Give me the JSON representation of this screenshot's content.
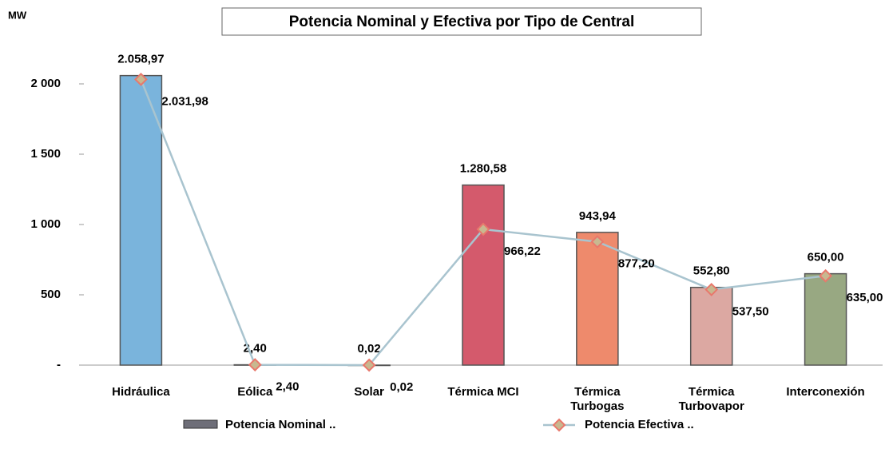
{
  "chart_data": {
    "type": "bar_line",
    "title": "Potencia Nominal y Efectiva por Tipo de Central",
    "y_label": "MW",
    "categories": [
      "Hidráulica",
      "Eólica",
      "Solar",
      "Térmica MCI",
      "Térmica Turbogas",
      "Térmica Turbovapor",
      "Interconexión"
    ],
    "series": [
      {
        "name": "Potencia Nominal ..",
        "type": "bar",
        "colors": [
          "#7ab4dc",
          "#6e6e78",
          "#6e6e78",
          "#d45a6c",
          "#ee8a6c",
          "#dca8a2",
          "#98a882"
        ],
        "values": [
          2058.97,
          2.4,
          0.02,
          1280.58,
          943.94,
          552.8,
          650.0
        ],
        "value_labels": [
          "2.058,97",
          "2,40",
          "0,02",
          "1.280,58",
          "943,94",
          "552,80",
          "650,00"
        ]
      },
      {
        "name": "Potencia Efectiva ..",
        "type": "line",
        "color": "#a9c4cf",
        "marker_color": "#e8786c",
        "values": [
          2031.98,
          2.4,
          0.02,
          966.22,
          877.2,
          537.5,
          635.0
        ],
        "value_labels": [
          "2.031,98",
          "2,40",
          "0,02",
          "966,22",
          "877,20",
          "537,50",
          "635,00"
        ]
      }
    ],
    "ylim": [
      0,
      2200
    ],
    "yticks": [
      {
        "value": 0,
        "label": "-"
      },
      500,
      {
        "value": 1000,
        "label": "1 000"
      },
      {
        "value": 1500,
        "label": "1 500"
      },
      {
        "value": 2000,
        "label": "2 000"
      }
    ]
  }
}
